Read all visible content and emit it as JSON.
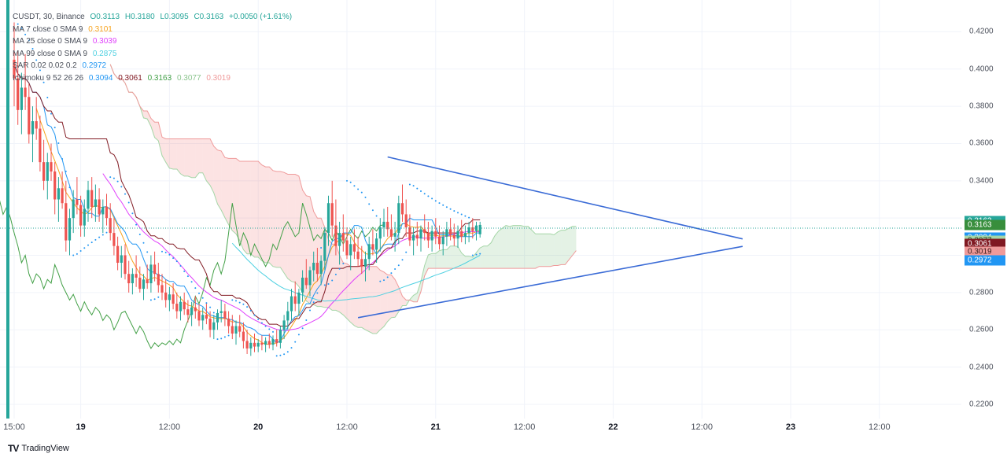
{
  "legend": {
    "symbol_line": {
      "label": "CUSDT, 30, Binance",
      "o": "O0.3113",
      "h": "H0.3180",
      "l": "L0.3095",
      "c": "C0.3163",
      "chg": "+0.0050 (+1.61%)"
    },
    "ma7": {
      "label": "MA 7 close 0 SMA 9",
      "value": "0.3101",
      "color": "#f7a21b"
    },
    "ma25": {
      "label": "MA 25 close 0 SMA 9",
      "value": "0.3039",
      "color": "#e040fb"
    },
    "ma99": {
      "label": "MA 99 close 0 SMA 9",
      "value": "0.2875",
      "color": "#4dd0e1"
    },
    "sar": {
      "label": "SAR 0.02 0.02 0.2",
      "value": "0.2972",
      "color": "#2196f3"
    },
    "ichimoku": {
      "label": "Ichimoku 9 52 26 26",
      "v1": "0.3094",
      "v2": "0.3061",
      "v3": "0.3163",
      "v4": "0.3077",
      "v5": "0.3019",
      "c1": "#2196f3",
      "c2": "#801922",
      "c3": "#43a047",
      "c4": "#a5d6a7",
      "c5": "#ef9a9a"
    }
  },
  "price_axis": {
    "ticks": [
      "0.4200",
      "0.4000",
      "0.3800",
      "0.3600",
      "0.3400",
      "0.2800",
      "0.2600",
      "0.2400",
      "0.2200"
    ],
    "badges": [
      {
        "text": "0.3163",
        "price": 0.3185,
        "color": "#26a69a"
      },
      {
        "text": "0.3163",
        "price": 0.3163,
        "color": "#388e3c"
      },
      {
        "text": "0.3094",
        "price": 0.3094,
        "color": "#2196f3"
      },
      {
        "text": "0.3077",
        "price": 0.3077,
        "color": "#a5d6a7",
        "text_color": "#1b3a1b"
      },
      {
        "text": "0.3061",
        "price": 0.3061,
        "color": "#801922"
      },
      {
        "text": "0.3019",
        "price": 0.3019,
        "color": "#ef9a9a",
        "text_color": "#3a1b1b"
      },
      {
        "text": "0.2972",
        "price": 0.2972,
        "color": "#2196f3"
      }
    ]
  },
  "time_axis": {
    "ticks": [
      {
        "label": "15:00",
        "bar": 0,
        "major": false
      },
      {
        "label": "19",
        "bar": 18,
        "major": true
      },
      {
        "label": "12:00",
        "bar": 42,
        "major": false
      },
      {
        "label": "20",
        "bar": 66,
        "major": true
      },
      {
        "label": "12:00",
        "bar": 90,
        "major": false
      },
      {
        "label": "21",
        "bar": 114,
        "major": true
      },
      {
        "label": "12:00",
        "bar": 138,
        "major": false
      },
      {
        "label": "22",
        "bar": 162,
        "major": true
      },
      {
        "label": "12:00",
        "bar": 186,
        "major": false
      },
      {
        "label": "23",
        "bar": 210,
        "major": true
      },
      {
        "label": "12:00",
        "bar": 234,
        "major": false
      }
    ]
  },
  "brand": {
    "name": "TradingView",
    "logo": "TV"
  },
  "chart_data": {
    "type": "candlestick",
    "symbol": "CUSDT",
    "interval": "30",
    "exchange": "Binance",
    "ylim": [
      0.215,
      0.43
    ],
    "x_bars_visible": 256,
    "last_close": 0.3163,
    "candles": [
      [
        0.405,
        0.425,
        0.38,
        0.395
      ],
      [
        0.395,
        0.41,
        0.37,
        0.378
      ],
      [
        0.378,
        0.398,
        0.365,
        0.39
      ],
      [
        0.39,
        0.408,
        0.378,
        0.385
      ],
      [
        0.385,
        0.392,
        0.36,
        0.365
      ],
      [
        0.365,
        0.38,
        0.35,
        0.372
      ],
      [
        0.372,
        0.385,
        0.362,
        0.368
      ],
      [
        0.368,
        0.375,
        0.345,
        0.35
      ],
      [
        0.35,
        0.362,
        0.335,
        0.34
      ],
      [
        0.34,
        0.355,
        0.33,
        0.35
      ],
      [
        0.35,
        0.36,
        0.34,
        0.345
      ],
      [
        0.345,
        0.35,
        0.322,
        0.33
      ],
      [
        0.33,
        0.342,
        0.318,
        0.336
      ],
      [
        0.336,
        0.345,
        0.325,
        0.328
      ],
      [
        0.328,
        0.34,
        0.302,
        0.308
      ],
      [
        0.308,
        0.325,
        0.3,
        0.32
      ],
      [
        0.32,
        0.335,
        0.312,
        0.33
      ],
      [
        0.33,
        0.342,
        0.322,
        0.327
      ],
      [
        0.327,
        0.332,
        0.31,
        0.316
      ],
      [
        0.316,
        0.33,
        0.31,
        0.325
      ],
      [
        0.325,
        0.34,
        0.318,
        0.335
      ],
      [
        0.335,
        0.342,
        0.32,
        0.326
      ],
      [
        0.326,
        0.338,
        0.318,
        0.33
      ],
      [
        0.33,
        0.336,
        0.318,
        0.322
      ],
      [
        0.322,
        0.33,
        0.312,
        0.326
      ],
      [
        0.326,
        0.333,
        0.316,
        0.32
      ],
      [
        0.32,
        0.328,
        0.308,
        0.312
      ],
      [
        0.312,
        0.32,
        0.3,
        0.305
      ],
      [
        0.305,
        0.31,
        0.292,
        0.296
      ],
      [
        0.296,
        0.305,
        0.288,
        0.3
      ],
      [
        0.3,
        0.306,
        0.287,
        0.29
      ],
      [
        0.29,
        0.297,
        0.28,
        0.285
      ],
      [
        0.285,
        0.293,
        0.279,
        0.29
      ],
      [
        0.29,
        0.3,
        0.283,
        0.288
      ],
      [
        0.288,
        0.294,
        0.28,
        0.282
      ],
      [
        0.282,
        0.29,
        0.276,
        0.287
      ],
      [
        0.287,
        0.295,
        0.282,
        0.285
      ],
      [
        0.285,
        0.3,
        0.28,
        0.295
      ],
      [
        0.295,
        0.302,
        0.286,
        0.29
      ],
      [
        0.29,
        0.296,
        0.28,
        0.284
      ],
      [
        0.284,
        0.29,
        0.276,
        0.28
      ],
      [
        0.28,
        0.287,
        0.272,
        0.276
      ],
      [
        0.276,
        0.283,
        0.27,
        0.279
      ],
      [
        0.279,
        0.285,
        0.271,
        0.274
      ],
      [
        0.274,
        0.28,
        0.266,
        0.27
      ],
      [
        0.27,
        0.278,
        0.265,
        0.275
      ],
      [
        0.275,
        0.28,
        0.268,
        0.271
      ],
      [
        0.271,
        0.276,
        0.264,
        0.268
      ],
      [
        0.268,
        0.275,
        0.262,
        0.272
      ],
      [
        0.272,
        0.278,
        0.266,
        0.27
      ],
      [
        0.27,
        0.274,
        0.262,
        0.265
      ],
      [
        0.265,
        0.272,
        0.26,
        0.268
      ],
      [
        0.268,
        0.274,
        0.263,
        0.266
      ],
      [
        0.266,
        0.27,
        0.256,
        0.26
      ],
      [
        0.26,
        0.268,
        0.255,
        0.264
      ],
      [
        0.264,
        0.271,
        0.26,
        0.269
      ],
      [
        0.269,
        0.276,
        0.264,
        0.27
      ],
      [
        0.27,
        0.274,
        0.262,
        0.266
      ],
      [
        0.266,
        0.27,
        0.258,
        0.262
      ],
      [
        0.262,
        0.268,
        0.255,
        0.258
      ],
      [
        0.258,
        0.265,
        0.252,
        0.262
      ],
      [
        0.262,
        0.268,
        0.256,
        0.259
      ],
      [
        0.259,
        0.264,
        0.25,
        0.254
      ],
      [
        0.254,
        0.26,
        0.247,
        0.25
      ],
      [
        0.25,
        0.256,
        0.246,
        0.253
      ],
      [
        0.253,
        0.258,
        0.248,
        0.251
      ],
      [
        0.251,
        0.255,
        0.248,
        0.253
      ],
      [
        0.253,
        0.257,
        0.249,
        0.252
      ],
      [
        0.252,
        0.256,
        0.248,
        0.254
      ],
      [
        0.254,
        0.258,
        0.25,
        0.252
      ],
      [
        0.252,
        0.257,
        0.249,
        0.255
      ],
      [
        0.255,
        0.26,
        0.251,
        0.253
      ],
      [
        0.253,
        0.262,
        0.25,
        0.26
      ],
      [
        0.26,
        0.268,
        0.255,
        0.265
      ],
      [
        0.265,
        0.275,
        0.26,
        0.27
      ],
      [
        0.27,
        0.282,
        0.265,
        0.278
      ],
      [
        0.278,
        0.286,
        0.27,
        0.274
      ],
      [
        0.274,
        0.282,
        0.268,
        0.28
      ],
      [
        0.28,
        0.292,
        0.275,
        0.288
      ],
      [
        0.288,
        0.298,
        0.282,
        0.284
      ],
      [
        0.284,
        0.294,
        0.278,
        0.292
      ],
      [
        0.292,
        0.302,
        0.286,
        0.296
      ],
      [
        0.296,
        0.304,
        0.286,
        0.29
      ],
      [
        0.29,
        0.3,
        0.284,
        0.297
      ],
      [
        0.297,
        0.315,
        0.292,
        0.312
      ],
      [
        0.312,
        0.332,
        0.305,
        0.328
      ],
      [
        0.328,
        0.34,
        0.31,
        0.316
      ],
      [
        0.316,
        0.33,
        0.3,
        0.305
      ],
      [
        0.305,
        0.318,
        0.295,
        0.312
      ],
      [
        0.312,
        0.322,
        0.302,
        0.308
      ],
      [
        0.308,
        0.315,
        0.298,
        0.3
      ],
      [
        0.3,
        0.31,
        0.292,
        0.306
      ],
      [
        0.306,
        0.314,
        0.298,
        0.302
      ],
      [
        0.302,
        0.31,
        0.294,
        0.298
      ],
      [
        0.298,
        0.305,
        0.29,
        0.294
      ],
      [
        0.294,
        0.302,
        0.286,
        0.298
      ],
      [
        0.298,
        0.31,
        0.292,
        0.306
      ],
      [
        0.306,
        0.314,
        0.3,
        0.303
      ],
      [
        0.303,
        0.312,
        0.296,
        0.309
      ],
      [
        0.309,
        0.32,
        0.302,
        0.315
      ],
      [
        0.315,
        0.325,
        0.31,
        0.318
      ],
      [
        0.318,
        0.326,
        0.31,
        0.314
      ],
      [
        0.314,
        0.322,
        0.308,
        0.31
      ],
      [
        0.31,
        0.318,
        0.302,
        0.312
      ],
      [
        0.312,
        0.332,
        0.306,
        0.328
      ],
      [
        0.328,
        0.338,
        0.318,
        0.322
      ],
      [
        0.322,
        0.33,
        0.31,
        0.315
      ],
      [
        0.315,
        0.322,
        0.305,
        0.308
      ],
      [
        0.308,
        0.315,
        0.3,
        0.311
      ],
      [
        0.311,
        0.318,
        0.305,
        0.309
      ],
      [
        0.309,
        0.316,
        0.302,
        0.314
      ],
      [
        0.314,
        0.322,
        0.308,
        0.312
      ],
      [
        0.312,
        0.318,
        0.304,
        0.308
      ],
      [
        0.308,
        0.316,
        0.302,
        0.313
      ],
      [
        0.313,
        0.32,
        0.306,
        0.31
      ],
      [
        0.31,
        0.316,
        0.303,
        0.306
      ],
      [
        0.306,
        0.313,
        0.3,
        0.31
      ],
      [
        0.31,
        0.318,
        0.305,
        0.314
      ],
      [
        0.314,
        0.32,
        0.308,
        0.311
      ],
      [
        0.311,
        0.317,
        0.305,
        0.309
      ],
      [
        0.309,
        0.316,
        0.304,
        0.313
      ],
      [
        0.313,
        0.319,
        0.307,
        0.31
      ],
      [
        0.31,
        0.316,
        0.306,
        0.312
      ],
      [
        0.312,
        0.318,
        0.307,
        0.315
      ],
      [
        0.315,
        0.32,
        0.309,
        0.313
      ],
      [
        0.313,
        0.318,
        0.308,
        0.316
      ],
      [
        0.3113,
        0.318,
        0.3095,
        0.3163
      ]
    ],
    "triangle": {
      "upper": [
        [
          101,
          0.3528
        ],
        [
          197,
          0.3088
        ]
      ],
      "lower": [
        [
          93,
          0.2665
        ],
        [
          197,
          0.3048
        ]
      ],
      "color": "#3a6bd6"
    }
  }
}
